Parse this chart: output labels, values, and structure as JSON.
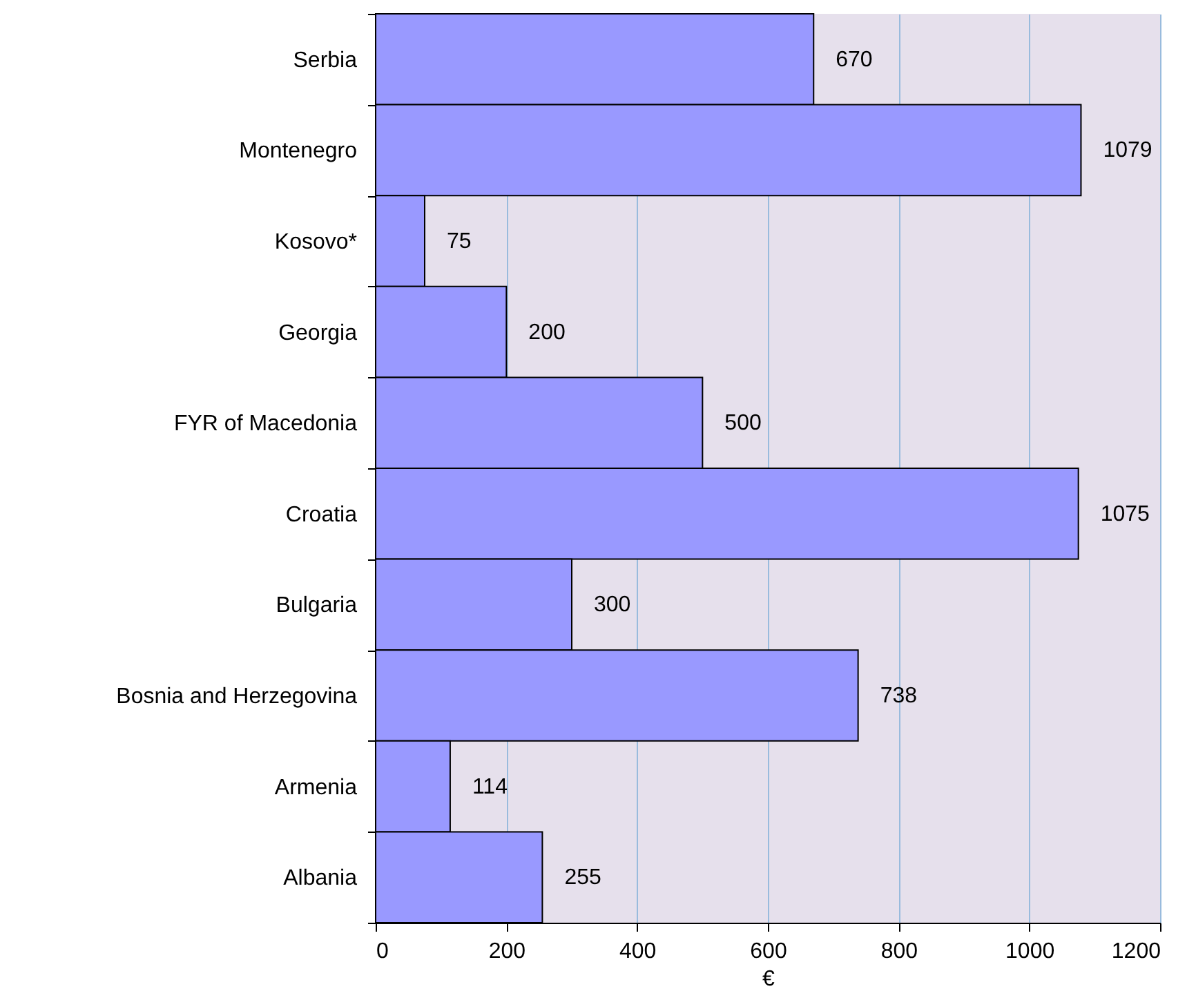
{
  "chart_data": {
    "type": "bar",
    "orientation": "horizontal",
    "xlabel": "€",
    "categories": [
      "Serbia",
      "Montenegro",
      "Kosovo*",
      "Georgia",
      "FYR of Macedonia",
      "Croatia",
      "Bulgaria",
      "Bosnia and Herzegovina",
      "Armenia",
      "Albania"
    ],
    "values": [
      670,
      1079,
      75,
      200,
      500,
      1075,
      300,
      738,
      114,
      255
    ],
    "color": "#9999ff",
    "data_labels": true,
    "grid": "x",
    "xlim": [
      0,
      1200
    ],
    "xticks": [
      0,
      200,
      400,
      600,
      800,
      1000,
      1200
    ]
  }
}
